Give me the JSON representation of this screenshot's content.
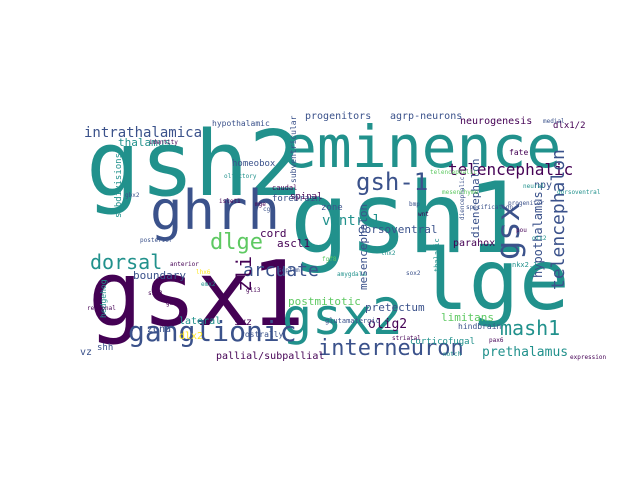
{
  "colors": {
    "background": "#ffffff",
    "palette": [
      "#440154",
      "#3b528b",
      "#21918c",
      "#5ec962",
      "#fde725"
    ]
  },
  "words": [
    "gsh1",
    "gsx1",
    "gsh2",
    "eminence",
    "lge",
    "ghrh",
    "gsx2",
    "ganglionic",
    "interneuron",
    "gsx",
    "gsh-1",
    "telencephalic",
    "telencephalon",
    "dlge",
    "dorsal",
    "mash1",
    "arcuate",
    "intrathalamica",
    "prethalamus",
    "hypothalamus",
    "zli",
    "ventral",
    "pretectum",
    "olig2",
    "diencephalon",
    "mesencephalon",
    "dorsoventral",
    "parahox",
    "progenitors",
    "agrp-neurons",
    "neurogenesis",
    "thalamus",
    "subdivisions",
    "cord",
    "boundary",
    "ascl1",
    "homeobox",
    "postmitotic",
    "lateral",
    "svz",
    "zona",
    "pallial/subpallial",
    "dlx2",
    "limitans",
    "spinal",
    "subventricular",
    "forebrain",
    "hindbrain",
    "corticofugal",
    "vz",
    "shh",
    "dlx1/2",
    "fate",
    "npy",
    "neural",
    "hedgehog",
    "caudal",
    "zone",
    "rostrally",
    "medial",
    "hypothalamic",
    "diencephalic",
    "thalamic",
    "identity",
    "telencephalic",
    "olfactory",
    "glutamatergic",
    "posterior",
    "anterior",
    "nkx2.1",
    "pax6",
    "lhx2",
    "sox2",
    "gli3",
    "emx2",
    "fgf8",
    "wnt",
    "bmp",
    "six3",
    "lhx6",
    "gad1",
    "notch",
    "progenitor",
    "striatal",
    "amygdala",
    "septum",
    "mge",
    "cge",
    "pou",
    "otx2",
    "gbx2",
    "islet1",
    "mesenchyme",
    "specification",
    "regional",
    "dorsoventral",
    "expression"
  ]
}
